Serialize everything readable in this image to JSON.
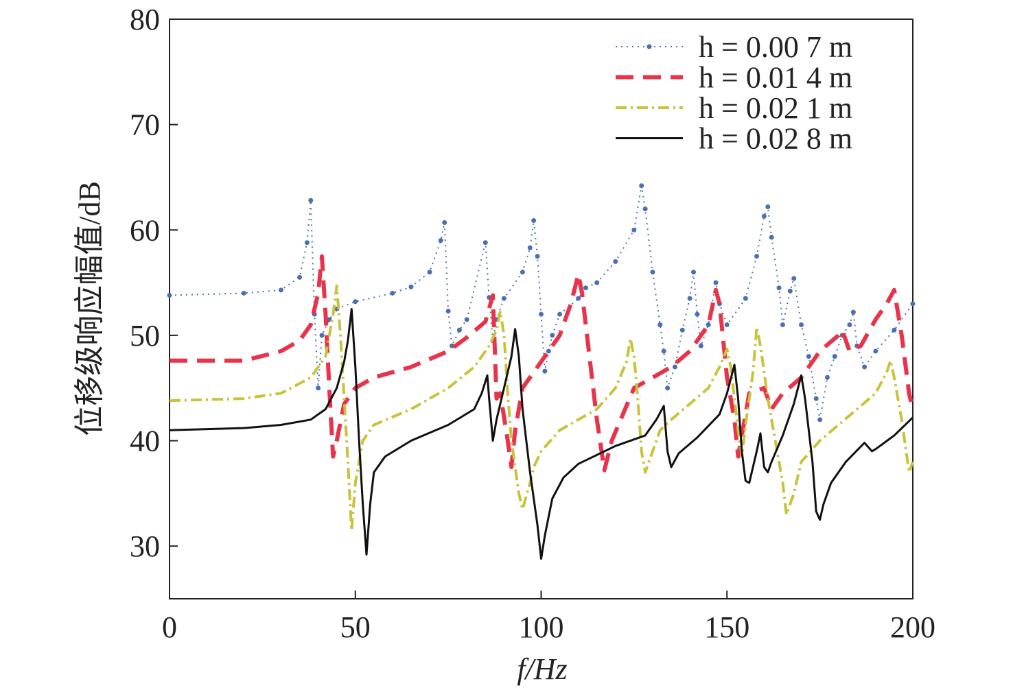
{
  "chart_data": {
    "type": "line",
    "xlabel": "f/Hz",
    "ylabel": "位移级响应幅值/dB",
    "xlim": [
      0,
      200
    ],
    "xticks": [
      0,
      50,
      100,
      150,
      200
    ],
    "ylim": [
      25,
      80
    ],
    "yticks": [
      30,
      40,
      50,
      60,
      70,
      80
    ],
    "grid": false,
    "legend": "upper right",
    "series": [
      {
        "name": "h = 0.00 7 m",
        "color": "#4a6fb5",
        "linestyle": "dotted",
        "marker": "o",
        "x": [
          0,
          20,
          30,
          35,
          37,
          38,
          39,
          40,
          41,
          43,
          45,
          50,
          60,
          65,
          70,
          73,
          74,
          75,
          76,
          78,
          80,
          85,
          86,
          87,
          88,
          90,
          95,
          97,
          98,
          99,
          100,
          101,
          102,
          103,
          105,
          110,
          112,
          115,
          120,
          125,
          127,
          128,
          130,
          132,
          133,
          134,
          136,
          138,
          140,
          141,
          142,
          143,
          145,
          147,
          148,
          150,
          155,
          158,
          160,
          161,
          162,
          164,
          165,
          167,
          168,
          170,
          172,
          174,
          175,
          177,
          179,
          181,
          183,
          184,
          185,
          187,
          190,
          195,
          200
        ],
        "values": [
          53.8,
          54,
          54.3,
          55.5,
          58.8,
          62.8,
          52,
          45,
          50,
          51.5,
          52.5,
          53.2,
          54,
          54.6,
          56,
          59,
          60.7,
          52.3,
          49,
          50.5,
          51.5,
          58.8,
          53.6,
          49.5,
          51.5,
          53.5,
          56,
          58.3,
          60.9,
          57.5,
          52,
          46.6,
          48.5,
          50,
          52,
          53.5,
          54.5,
          55,
          57,
          60,
          64.2,
          62,
          56,
          51,
          48.5,
          45,
          47,
          50.5,
          53.5,
          56,
          52,
          49,
          51,
          55,
          53,
          51,
          53.5,
          57.5,
          61.3,
          62.2,
          59.3,
          54.5,
          51,
          54.2,
          55.4,
          51,
          48,
          44,
          42,
          46,
          48,
          50,
          51,
          52.2,
          49,
          47,
          48.5,
          50.5,
          53
        ]
      },
      {
        "name": "h = 0.01 4 m",
        "color": "#e8334a",
        "linestyle": "dashed",
        "x": [
          0,
          20,
          30,
          35,
          38,
          40,
          41,
          42,
          43,
          44,
          45,
          47,
          50,
          55,
          65,
          75,
          80,
          85,
          87,
          88,
          89,
          91,
          92,
          93,
          95,
          100,
          105,
          108,
          110,
          111,
          113,
          115,
          117,
          119,
          122,
          125,
          130,
          135,
          140,
          145,
          147,
          148,
          150,
          152,
          153,
          156,
          160,
          162,
          165,
          170,
          175,
          180,
          181,
          183,
          186,
          190,
          193,
          195,
          197,
          199,
          200
        ],
        "values": [
          47.6,
          47.6,
          48.5,
          49.5,
          51,
          54,
          57.5,
          52,
          45,
          38.5,
          40,
          43.5,
          45,
          46,
          47,
          48.5,
          49.8,
          51.3,
          53.8,
          44,
          44.5,
          40,
          37.5,
          41,
          45,
          47.5,
          50,
          53,
          55.8,
          54,
          48,
          42,
          37.2,
          40,
          42.5,
          45,
          46,
          47,
          48.5,
          51,
          54.3,
          53,
          46,
          42,
          38.5,
          44.5,
          45,
          43,
          44.5,
          46,
          48.5,
          50,
          50.5,
          48.5,
          49,
          51.5,
          53,
          54.3,
          50,
          44.5,
          43
        ]
      },
      {
        "name": "h = 0.02 1 m",
        "color": "#c9c23a",
        "linestyle": "dashdot",
        "x": [
          0,
          20,
          30,
          38,
          42,
          44,
          45,
          46,
          47,
          48,
          49,
          50,
          52,
          55,
          65,
          75,
          82,
          86,
          88,
          89,
          90,
          91,
          92,
          94,
          95,
          97,
          98,
          100,
          105,
          115,
          120,
          123,
          124,
          125,
          126,
          127,
          128,
          130,
          132,
          135,
          140,
          145,
          148,
          150,
          151,
          153,
          154,
          155,
          157,
          158,
          159,
          161,
          163,
          165,
          166,
          168,
          170,
          175,
          180,
          185,
          190,
          193,
          194,
          195,
          197,
          199,
          200
        ],
        "values": [
          43.8,
          44,
          44.5,
          46,
          48,
          52,
          54.7,
          50,
          44,
          38,
          31.5,
          36,
          40,
          41.5,
          43,
          45,
          47,
          49,
          50.5,
          52.3,
          50,
          44.5,
          40,
          35,
          33.5,
          36,
          37.5,
          39,
          41,
          43,
          45,
          47.5,
          49.7,
          48,
          44,
          39,
          37,
          39,
          41,
          42,
          43.5,
          45,
          47,
          48.7,
          47,
          41,
          38.5,
          41.5,
          46.5,
          50.8,
          49,
          44,
          40,
          36,
          33,
          35,
          38,
          40,
          41.5,
          43,
          44.5,
          46.5,
          47.6,
          46,
          42,
          37,
          38
        ]
      },
      {
        "name": "h = 0.02 8 m",
        "color": "#111111",
        "linestyle": "solid",
        "x": [
          0,
          20,
          30,
          38,
          42,
          45,
          47,
          48,
          49,
          50,
          51,
          52,
          53,
          54,
          55,
          58,
          65,
          75,
          82,
          84,
          85.5,
          86,
          87,
          88,
          90,
          91,
          92,
          93,
          94,
          95,
          97,
          99,
          100,
          101,
          103,
          106,
          110,
          120,
          128,
          131,
          133,
          134,
          135,
          137,
          142,
          148,
          150,
          152,
          153,
          154,
          155,
          156,
          158,
          159,
          160,
          161,
          162,
          165,
          168,
          170,
          171,
          173,
          174,
          175,
          176,
          178,
          182,
          187,
          189,
          190,
          195,
          200
        ],
        "values": [
          41,
          41.2,
          41.5,
          42,
          43,
          45,
          47.5,
          49.5,
          52.5,
          47,
          40,
          34,
          29.2,
          34,
          37,
          38.5,
          40,
          41.5,
          43,
          44.5,
          46.2,
          44,
          40,
          42,
          45,
          46.5,
          48,
          50.6,
          48,
          43,
          37,
          32,
          28.8,
          31,
          34.5,
          36.5,
          37.8,
          39.5,
          40.5,
          42,
          43.3,
          39,
          37.5,
          38.8,
          40.3,
          42.5,
          44.5,
          47.2,
          44,
          39,
          36.2,
          36,
          39,
          40.7,
          37.5,
          37,
          38,
          40.5,
          43.5,
          46.2,
          44,
          38,
          33.3,
          32.5,
          34,
          36,
          38,
          39.8,
          39,
          39.2,
          40.5,
          42.2
        ]
      }
    ]
  }
}
